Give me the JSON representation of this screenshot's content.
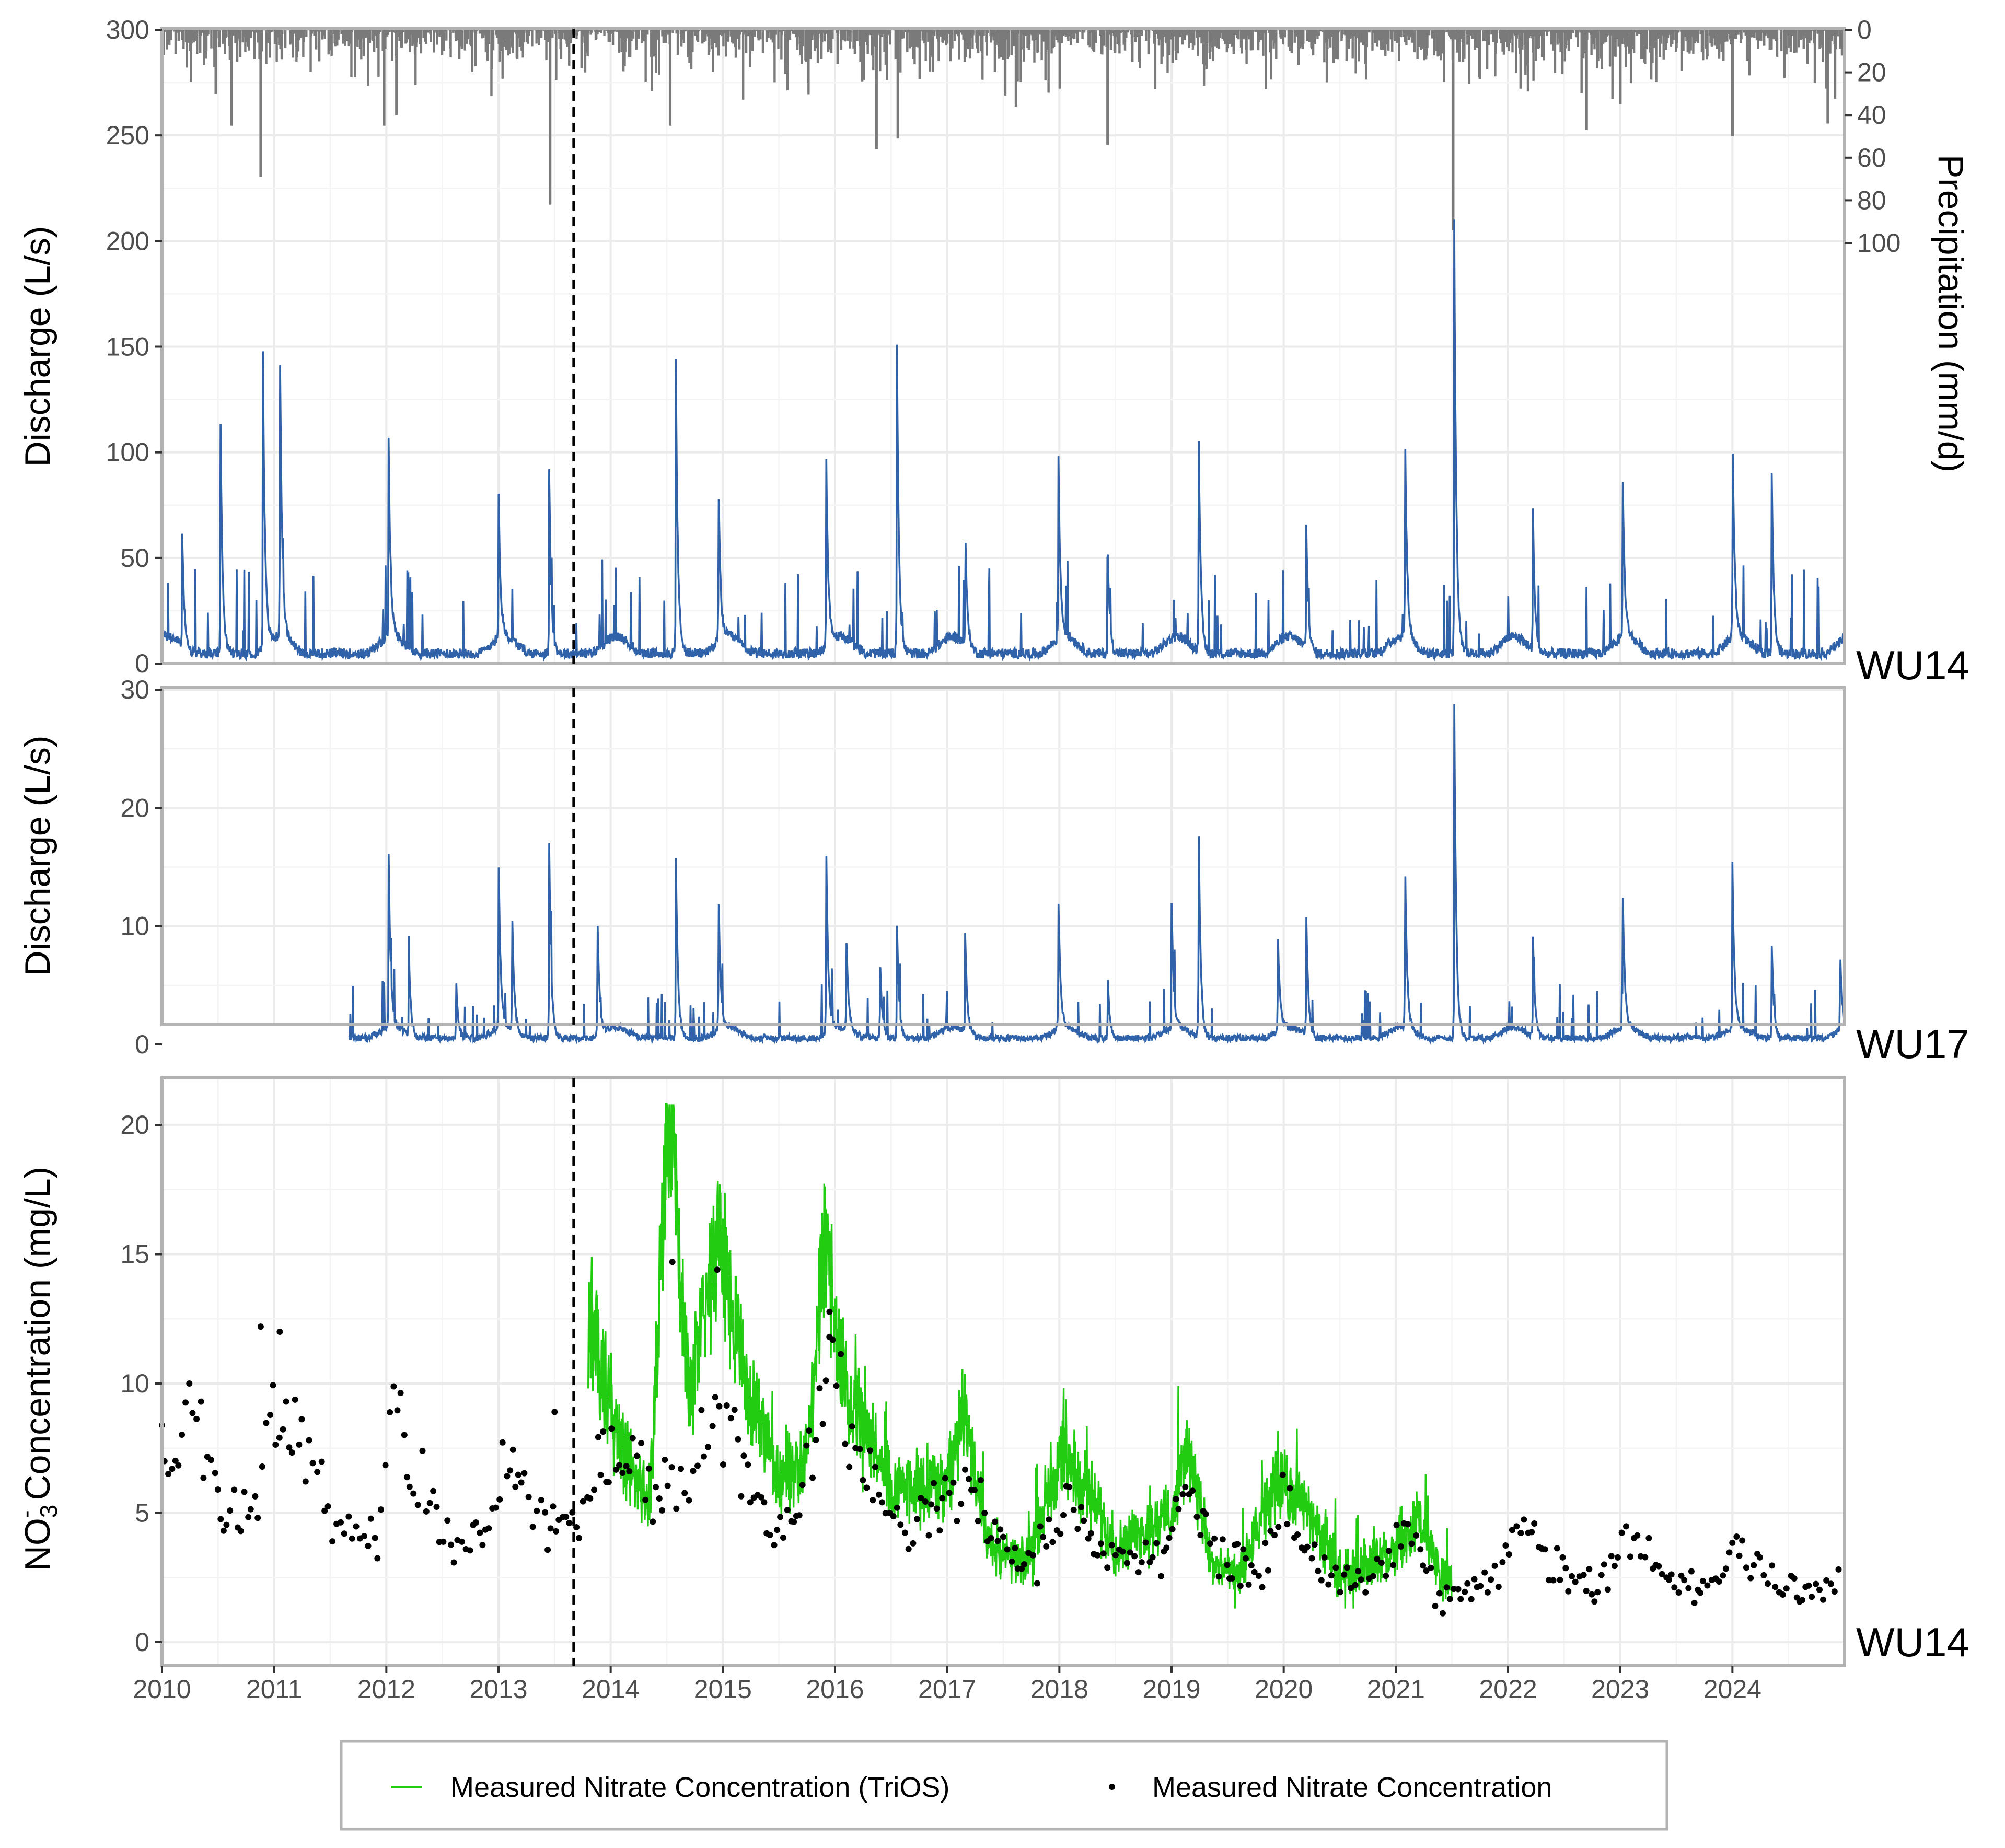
{
  "chart_data": [
    {
      "type": "line",
      "panel": "discharge-wu14",
      "site_label": "WU14",
      "ylabel": "Discharge (L/s)",
      "ylim": [
        0,
        300
      ],
      "yticks": [
        "0",
        "50",
        "100",
        "150",
        "200",
        "250",
        "300"
      ],
      "y2label": "Precipitation (mm/d)",
      "y2_reversed": true,
      "y2ticks": [
        "0",
        "20",
        "40",
        "60",
        "80",
        "100"
      ],
      "y2lim": [
        0,
        100
      ],
      "xlim": [
        2010,
        2025
      ],
      "grid": true,
      "dashed_vline_year": 2013.67,
      "colors": {
        "discharge": "#2f62a8",
        "precipitation": "#7a7a7a"
      },
      "discharge_base": {
        "peaks": [
          [
            2010.18,
            55
          ],
          [
            2010.52,
            119
          ],
          [
            2010.9,
            142
          ],
          [
            2011.05,
            154
          ],
          [
            2012.02,
            95
          ],
          [
            2013.0,
            72
          ],
          [
            2013.45,
            94
          ],
          [
            2014.58,
            145
          ],
          [
            2014.96,
            82
          ],
          [
            2015.92,
            97
          ],
          [
            2016.55,
            163
          ],
          [
            2017.16,
            57
          ],
          [
            2017.99,
            94
          ],
          [
            2018.43,
            53
          ],
          [
            2019.24,
            119
          ],
          [
            2020.2,
            63
          ],
          [
            2021.08,
            108
          ],
          [
            2021.52,
            207
          ],
          [
            2022.22,
            73
          ],
          [
            2023.02,
            87
          ],
          [
            2024.0,
            109
          ],
          [
            2024.35,
            90
          ]
        ]
      },
      "precip_spikes": [
        [
          2010.48,
          30
        ],
        [
          2010.62,
          45
        ],
        [
          2010.88,
          69
        ],
        [
          2011.98,
          45
        ],
        [
          2012.09,
          40
        ],
        [
          2013.46,
          82
        ],
        [
          2014.53,
          45
        ],
        [
          2016.37,
          56
        ],
        [
          2016.56,
          51
        ],
        [
          2018.43,
          54
        ],
        [
          2021.51,
          94
        ],
        [
          2022.7,
          47
        ],
        [
          2023.0,
          35
        ],
        [
          2024.0,
          50
        ],
        [
          2024.85,
          44
        ]
      ]
    },
    {
      "type": "line",
      "panel": "discharge-wu17",
      "site_label": "WU17",
      "ylabel": "Discharge (L/s)",
      "ylim": [
        0,
        30
      ],
      "yticks": [
        "0",
        "10",
        "20",
        "30"
      ],
      "xlim": [
        2010,
        2025
      ],
      "record_start_year": 2011.67,
      "color": "#2f62a8",
      "peaks": [
        [
          2012.02,
          15.6
        ],
        [
          2012.2,
          7.3
        ],
        [
          2012.62,
          5.5
        ],
        [
          2013.0,
          15.3
        ],
        [
          2013.12,
          11.0
        ],
        [
          2013.45,
          18.4
        ],
        [
          2013.88,
          11.4
        ],
        [
          2014.58,
          16.6
        ],
        [
          2014.96,
          13.1
        ],
        [
          2015.92,
          17.4
        ],
        [
          2016.1,
          8.5
        ],
        [
          2016.4,
          7.2
        ],
        [
          2016.55,
          11.2
        ],
        [
          2017.16,
          8.6
        ],
        [
          2017.99,
          12.4
        ],
        [
          2018.43,
          5.8
        ],
        [
          2019.0,
          11.0
        ],
        [
          2019.24,
          20.5
        ],
        [
          2019.95,
          7.5
        ],
        [
          2020.2,
          11.2
        ],
        [
          2021.08,
          16.0
        ],
        [
          2021.52,
          28.9
        ],
        [
          2022.22,
          9.6
        ],
        [
          2023.02,
          13.4
        ],
        [
          2024.0,
          13.9
        ],
        [
          2024.35,
          8.5
        ],
        [
          2024.96,
          7.3
        ]
      ]
    },
    {
      "type": "scatter",
      "panel": "nitrate-wu14",
      "site_label": "WU14",
      "ylabel_main": "NO",
      "ylabel_sub": "3",
      "ylabel_sup": "-",
      "ylabel_rest": " Concentration (mg/L)",
      "ylim": [
        0,
        21
      ],
      "yticks": [
        "0",
        "5",
        "10",
        "15",
        "20"
      ],
      "xlim": [
        2010,
        2025
      ],
      "xticks": [
        "2010",
        "2011",
        "2012",
        "2013",
        "2014",
        "2015",
        "2016",
        "2017",
        "2018",
        "2019",
        "2020",
        "2021",
        "2022",
        "2023",
        "2024"
      ],
      "series": [
        {
          "name": "Measured Nitrate Concentration (TriOS)",
          "style": "line",
          "color": "#22cc11",
          "x_range": [
            2013.8,
            2021.5
          ],
          "key_values": [
            [
              2013.85,
              11.9
            ],
            [
              2014.1,
              7.3
            ],
            [
              2014.35,
              5.5
            ],
            [
              2014.52,
              20.8
            ],
            [
              2014.7,
              9.4
            ],
            [
              2014.98,
              15.6
            ],
            [
              2015.2,
              10.0
            ],
            [
              2015.5,
              6.5
            ],
            [
              2015.75,
              7.0
            ],
            [
              2015.9,
              15.4
            ],
            [
              2016.1,
              9.7
            ],
            [
              2016.5,
              6.0
            ],
            [
              2017.0,
              6.2
            ],
            [
              2017.15,
              8.7
            ],
            [
              2017.4,
              3.5
            ],
            [
              2017.7,
              3.0
            ],
            [
              2018.0,
              7.2
            ],
            [
              2018.25,
              6.0
            ],
            [
              2018.5,
              3.6
            ],
            [
              2019.0,
              5.0
            ],
            [
              2019.15,
              7.6
            ],
            [
              2019.35,
              3.0
            ],
            [
              2019.6,
              2.5
            ],
            [
              2019.95,
              6.2
            ],
            [
              2020.2,
              5.2
            ],
            [
              2020.5,
              2.6
            ],
            [
              2021.0,
              3.4
            ],
            [
              2021.2,
              4.8
            ],
            [
              2021.4,
              2.6
            ]
          ]
        },
        {
          "name": "Measured Nitrate Concentration",
          "style": "points",
          "color": "#000000",
          "trend": [
            [
              2010.0,
              7.2
            ],
            [
              2010.3,
              9.0
            ],
            [
              2010.5,
              5.2
            ],
            [
              2010.8,
              5.0
            ],
            [
              2011.0,
              9.0
            ],
            [
              2011.15,
              8.5
            ],
            [
              2011.4,
              6.0
            ],
            [
              2011.7,
              3.8
            ],
            [
              2011.95,
              4.2
            ],
            [
              2012.05,
              8.5
            ],
            [
              2012.25,
              6.8
            ],
            [
              2012.5,
              4.3
            ],
            [
              2012.8,
              4.1
            ],
            [
              2013.05,
              7.0
            ],
            [
              2013.35,
              4.5
            ],
            [
              2013.7,
              4.0
            ],
            [
              2013.9,
              7.3
            ],
            [
              2014.2,
              6.8
            ],
            [
              2014.5,
              5.5
            ],
            [
              2014.8,
              7.5
            ],
            [
              2015.05,
              8.8
            ],
            [
              2015.3,
              5.0
            ],
            [
              2015.6,
              4.2
            ],
            [
              2015.95,
              10.8
            ],
            [
              2016.3,
              6.5
            ],
            [
              2016.6,
              4.5
            ],
            [
              2016.9,
              5.2
            ],
            [
              2017.15,
              6.3
            ],
            [
              2017.5,
              3.5
            ],
            [
              2017.8,
              3.2
            ],
            [
              2018.05,
              6.0
            ],
            [
              2018.3,
              3.8
            ],
            [
              2018.6,
              3.2
            ],
            [
              2018.9,
              3.3
            ],
            [
              2019.15,
              5.5
            ],
            [
              2019.45,
              3.2
            ],
            [
              2019.8,
              2.8
            ],
            [
              2020.0,
              5.4
            ],
            [
              2020.3,
              3.0
            ],
            [
              2020.7,
              2.5
            ],
            [
              2021.1,
              4.5
            ],
            [
              2021.4,
              1.4
            ],
            [
              2021.7,
              2.0
            ],
            [
              2021.95,
              3.0
            ],
            [
              2022.15,
              4.8
            ],
            [
              2022.4,
              2.8
            ],
            [
              2022.8,
              2.2
            ],
            [
              2023.05,
              4.5
            ],
            [
              2023.4,
              2.3
            ],
            [
              2023.8,
              1.9
            ],
            [
              2024.05,
              3.7
            ],
            [
              2024.4,
              2.1
            ],
            [
              2024.8,
              1.8
            ],
            [
              2024.97,
              3.3
            ]
          ]
        }
      ]
    }
  ],
  "legend": {
    "item1": "Measured Nitrate Concentration (TriOS)",
    "item2": "Measured Nitrate Concentration"
  }
}
